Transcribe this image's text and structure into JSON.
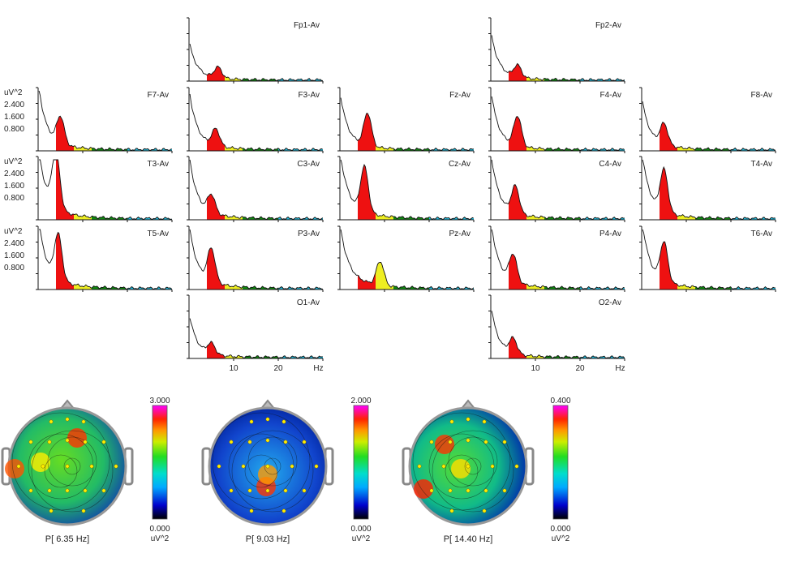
{
  "chart_data": [
    {
      "type": "area",
      "x_unit": "Hz",
      "x_ticks": [
        "10",
        "20",
        "Hz"
      ],
      "y_unit": "uV^2",
      "y_ticks": [
        "2.400",
        "1.600",
        "0.800"
      ],
      "band_colors": {
        "delta": "#ffffff",
        "theta": "#ee1111",
        "alpha": "#eeee22",
        "beta1": "#118811",
        "beta2": "#22bbdd"
      },
      "channels": [
        {
          "name": "Fp1-Av",
          "peak_hz": 6.5,
          "peak_rel": 0.18,
          "floor_rel": 0.1,
          "lowpeak_rel": 0.55
        },
        {
          "name": "Fp2-Av",
          "peak_hz": 6.0,
          "peak_rel": 0.2,
          "floor_rel": 0.12,
          "lowpeak_rel": 0.7
        },
        {
          "name": "F7-Av",
          "peak_hz": 5.0,
          "peak_rel": 0.45,
          "floor_rel": 0.2,
          "lowpeak_rel": 0.95
        },
        {
          "name": "F3-Av",
          "peak_hz": 6.0,
          "peak_rel": 0.28,
          "floor_rel": 0.18,
          "lowpeak_rel": 0.85
        },
        {
          "name": "Fz-Av",
          "peak_hz": 6.2,
          "peak_rel": 0.55,
          "floor_rel": 0.18,
          "lowpeak_rel": 0.8
        },
        {
          "name": "F4-Av",
          "peak_hz": 6.0,
          "peak_rel": 0.5,
          "floor_rel": 0.16,
          "lowpeak_rel": 0.85
        },
        {
          "name": "F8-Av",
          "peak_hz": 5.0,
          "peak_rel": 0.35,
          "floor_rel": 0.18,
          "lowpeak_rel": 0.7
        },
        {
          "name": "T3-Av",
          "peak_hz": 4.0,
          "peak_rel": 0.95,
          "floor_rel": 0.3,
          "lowpeak_rel": 0.95
        },
        {
          "name": "C3-Av",
          "peak_hz": 5.0,
          "peak_rel": 0.3,
          "floor_rel": 0.2,
          "lowpeak_rel": 0.9
        },
        {
          "name": "Cz-Av",
          "peak_hz": 5.5,
          "peak_rel": 0.75,
          "floor_rel": 0.3,
          "lowpeak_rel": 0.85
        },
        {
          "name": "C4-Av",
          "peak_hz": 5.5,
          "peak_rel": 0.45,
          "floor_rel": 0.22,
          "lowpeak_rel": 0.9
        },
        {
          "name": "T4-Av",
          "peak_hz": 5.0,
          "peak_rel": 0.7,
          "floor_rel": 0.25,
          "lowpeak_rel": 0.9
        },
        {
          "name": "T5-Av",
          "peak_hz": 4.5,
          "peak_rel": 0.75,
          "floor_rel": 0.28,
          "lowpeak_rel": 0.95
        },
        {
          "name": "P3-Av",
          "peak_hz": 5.0,
          "peak_rel": 0.55,
          "floor_rel": 0.25,
          "lowpeak_rel": 0.85
        },
        {
          "name": "Pz-Av",
          "peak_hz": 9.0,
          "peak_rel": 0.4,
          "floor_rel": 0.3,
          "lowpeak_rel": 0.8
        },
        {
          "name": "P4-Av",
          "peak_hz": 5.0,
          "peak_rel": 0.45,
          "floor_rel": 0.25,
          "lowpeak_rel": 0.9
        },
        {
          "name": "T6-Av",
          "peak_hz": 5.0,
          "peak_rel": 0.65,
          "floor_rel": 0.25,
          "lowpeak_rel": 0.95
        },
        {
          "name": "O1-Av",
          "peak_hz": 5.0,
          "peak_rel": 0.18,
          "floor_rel": 0.1,
          "lowpeak_rel": 0.65
        },
        {
          "name": "O2-Av",
          "peak_hz": 5.0,
          "peak_rel": 0.25,
          "floor_rel": 0.12,
          "lowpeak_rel": 0.75
        }
      ]
    },
    {
      "type": "heatmap",
      "caption": "P[  6.35 Hz]",
      "colorbar_max": "3.000",
      "colorbar_min": "0.000",
      "unit": "uV^2"
    },
    {
      "type": "heatmap",
      "caption": "P[  9.03 Hz]",
      "colorbar_max": "2.000",
      "colorbar_min": "0.000",
      "unit": "uV^2"
    },
    {
      "type": "heatmap",
      "caption": "P[ 14.40 Hz]",
      "colorbar_max": "0.400",
      "colorbar_min": "0.000",
      "unit": "uV^2"
    }
  ]
}
